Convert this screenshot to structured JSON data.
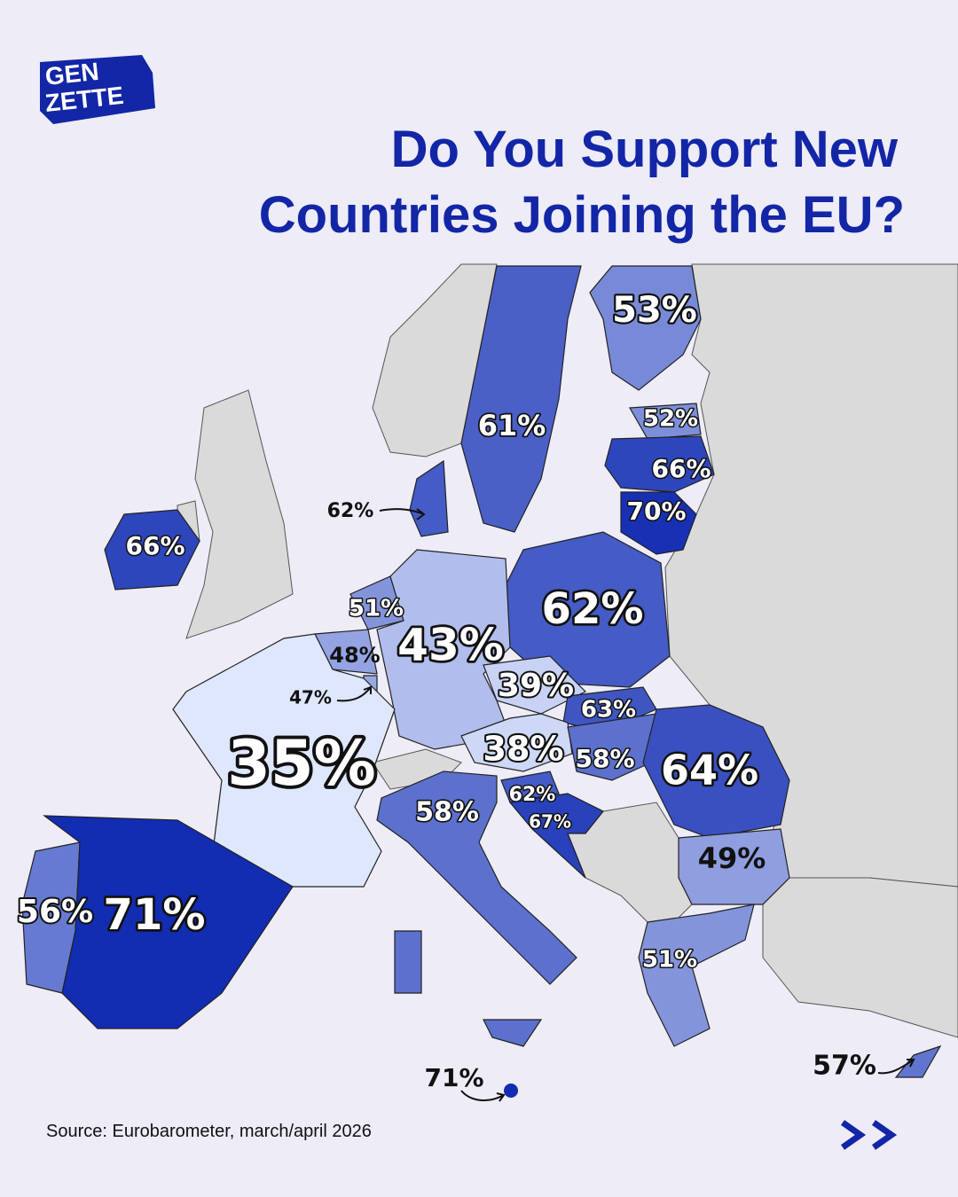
{
  "logo": {
    "lines": [
      "GEN",
      "ZETTE"
    ]
  },
  "header": {
    "title_lines": [
      "Do You Support New",
      "Countries Joining the EU?"
    ]
  },
  "map": {
    "regions": [
      {
        "value": 53,
        "label": "53%"
      },
      {
        "value": 61,
        "label": "61%"
      },
      {
        "value": 52,
        "label": "52%"
      },
      {
        "value": 66,
        "label": "66%"
      },
      {
        "value": 70,
        "label": "70%"
      },
      {
        "value": 62,
        "label": "62%"
      },
      {
        "value": 66,
        "label": "66%"
      },
      {
        "value": 62,
        "label": "62%"
      },
      {
        "value": 51,
        "label": "51%"
      },
      {
        "value": 48,
        "label": "48%"
      },
      {
        "value": 47,
        "label": "47%"
      },
      {
        "value": 43,
        "label": "43%"
      },
      {
        "value": 39,
        "label": "39%"
      },
      {
        "value": 63,
        "label": "63%"
      },
      {
        "value": 38,
        "label": "38%"
      },
      {
        "value": 58,
        "label": "58%"
      },
      {
        "value": 64,
        "label": "64%"
      },
      {
        "value": 35,
        "label": "35%"
      },
      {
        "value": 62,
        "label": "62%"
      },
      {
        "value": 67,
        "label": "67%"
      },
      {
        "value": 58,
        "label": "58%"
      },
      {
        "value": 49,
        "label": "49%"
      },
      {
        "value": 56,
        "label": "56%"
      },
      {
        "value": 71,
        "label": "71%"
      },
      {
        "value": 51,
        "label": "51%"
      },
      {
        "value": 57,
        "label": "57%"
      },
      {
        "value": 71,
        "label": "71%"
      }
    ]
  },
  "footer": {
    "source": "Source: Eurobarometer, march/april 2026"
  }
}
